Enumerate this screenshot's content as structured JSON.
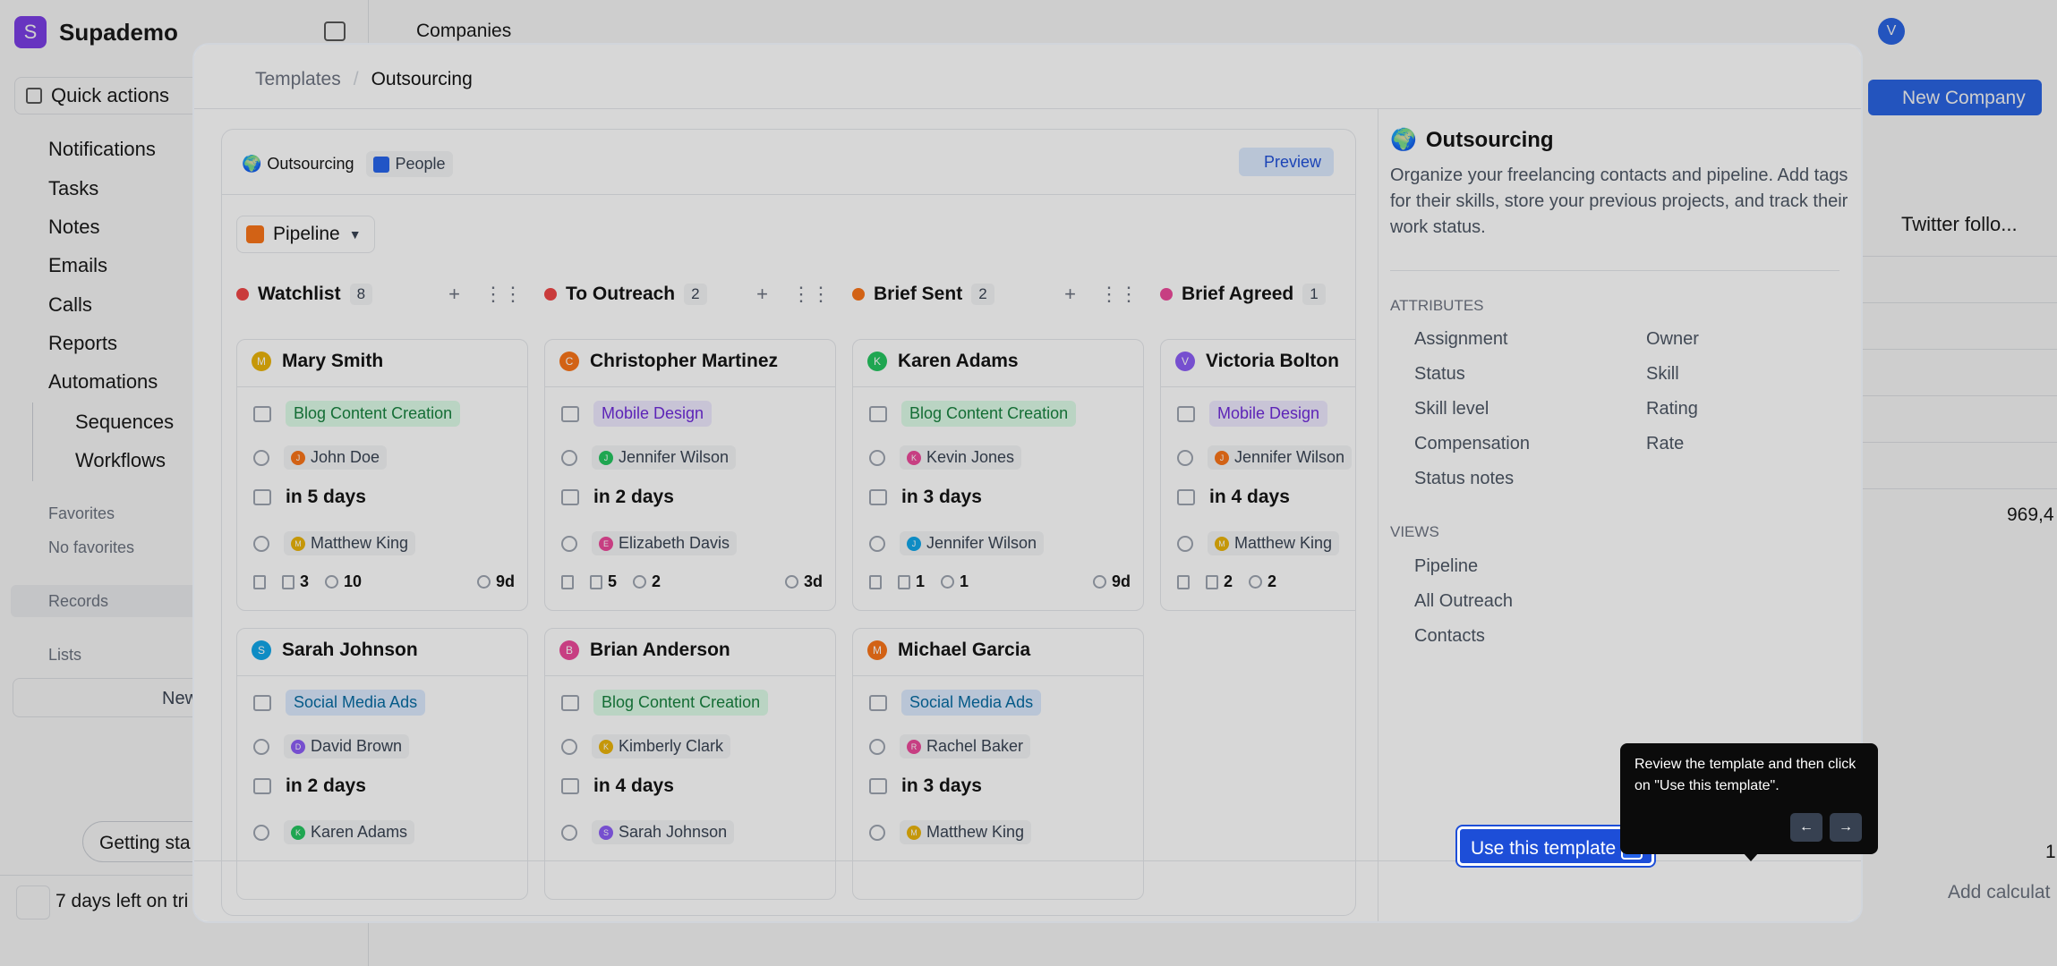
{
  "app": {
    "logo_letter": "S",
    "name": "Supademo"
  },
  "sidebar": {
    "quick_actions": "Quick actions",
    "items": [
      {
        "label": "Notifications"
      },
      {
        "label": "Tasks"
      },
      {
        "label": "Notes"
      },
      {
        "label": "Emails"
      },
      {
        "label": "Calls"
      },
      {
        "label": "Reports"
      },
      {
        "label": "Automations"
      }
    ],
    "sub_items": [
      {
        "label": "Sequences"
      },
      {
        "label": "Workflows"
      }
    ],
    "favorites_label": "Favorites",
    "no_favorites": "No favorites",
    "records_label": "Records",
    "lists_label": "Lists",
    "new_label": "New",
    "getting_started": "Getting sta",
    "trial": "7 days left on tri"
  },
  "main": {
    "title": "Companies",
    "avatar": "V",
    "new_company": "New Company",
    "twitter_col": "Twitter follo...",
    "value1": "969,4",
    "value2": "1",
    "add_calc": "Add calculat"
  },
  "modal": {
    "breadcrumb": [
      "Templates",
      "Outsourcing"
    ],
    "preview": {
      "object_label": "Outsourcing",
      "object_icon": "globe-icon",
      "object_emoji": "🌍",
      "people_label": "People",
      "preview_button": "Preview",
      "view_name": "Pipeline",
      "columns": [
        {
          "name": "Watchlist",
          "count": "8",
          "color": "#ef4444",
          "cards": [
            {
              "initial": "M",
              "avatar_color": "#eab308",
              "name": "Mary Smith",
              "tag": "Blog Content Creation",
              "tag_color": "green",
              "owner_initial": "J",
              "owner_color": "#f97316",
              "owner": "John Doe",
              "due": "in 5 days",
              "assignee_initial": "M",
              "assignee_color": "#eab308",
              "assignee": "Matthew King",
              "tasks": "3",
              "comments": "10",
              "age": "9d"
            },
            {
              "initial": "S",
              "avatar_color": "#0ea5e9",
              "name": "Sarah Johnson",
              "tag": "Social Media Ads",
              "tag_color": "blue",
              "owner_initial": "D",
              "owner_color": "#8b5cf6",
              "owner": "David Brown",
              "due": "in 2 days",
              "assignee_initial": "K",
              "assignee_color": "#22c55e",
              "assignee": "Karen Adams"
            }
          ]
        },
        {
          "name": "To Outreach",
          "count": "2",
          "color": "#ef4444",
          "cards": [
            {
              "initial": "C",
              "avatar_color": "#f97316",
              "name": "Christopher Martinez",
              "tag": "Mobile Design",
              "tag_color": "purple",
              "owner_initial": "J",
              "owner_color": "#22c55e",
              "owner": "Jennifer Wilson",
              "due": "in 2 days",
              "assignee_initial": "E",
              "assignee_color": "#ec4899",
              "assignee": "Elizabeth Davis",
              "tasks": "5",
              "comments": "2",
              "age": "3d"
            },
            {
              "initial": "B",
              "avatar_color": "#ec4899",
              "name": "Brian Anderson",
              "tag": "Blog Content Creation",
              "tag_color": "green",
              "owner_initial": "K",
              "owner_color": "#eab308",
              "owner": "Kimberly Clark",
              "due": "in 4 days",
              "assignee_initial": "S",
              "assignee_color": "#8b5cf6",
              "assignee": "Sarah Johnson"
            }
          ]
        },
        {
          "name": "Brief Sent",
          "count": "2",
          "color": "#f97316",
          "cards": [
            {
              "initial": "K",
              "avatar_color": "#22c55e",
              "name": "Karen Adams",
              "tag": "Blog Content Creation",
              "tag_color": "green",
              "owner_initial": "K",
              "owner_color": "#ec4899",
              "owner": "Kevin Jones",
              "due": "in 3 days",
              "assignee_initial": "J",
              "assignee_color": "#0ea5e9",
              "assignee": "Jennifer Wilson",
              "tasks": "1",
              "comments": "1",
              "age": "9d"
            },
            {
              "initial": "M",
              "avatar_color": "#f97316",
              "name": "Michael Garcia",
              "tag": "Social Media Ads",
              "tag_color": "blue",
              "owner_initial": "R",
              "owner_color": "#ec4899",
              "owner": "Rachel Baker",
              "due": "in 3 days",
              "assignee_initial": "M",
              "assignee_color": "#eab308",
              "assignee": "Matthew King"
            }
          ]
        },
        {
          "name": "Brief Agreed",
          "count": "1",
          "color": "#ec4899",
          "cards": [
            {
              "initial": "V",
              "avatar_color": "#8b5cf6",
              "name": "Victoria Bolton",
              "tag": "Mobile Design",
              "tag_color": "purple",
              "owner_initial": "J",
              "owner_color": "#f97316",
              "owner": "Jennifer Wilson",
              "due": "in 4 days",
              "assignee_initial": "M",
              "assignee_color": "#eab308",
              "assignee": "Matthew King",
              "tasks": "2",
              "comments": "2",
              "age": ""
            }
          ]
        }
      ]
    },
    "info": {
      "title": "Outsourcing",
      "description": "Organize your freelancing contacts and pipeline. Add tags for their skills, store your previous projects, and track their work status.",
      "attributes_label": "ATTRIBUTES",
      "attributes_left": [
        "Assignment",
        "Status",
        "Skill level",
        "Compensation",
        "Status notes"
      ],
      "attributes_right": [
        "Owner",
        "Skill",
        "Rating",
        "Rate"
      ],
      "views_label": "VIEWS",
      "views": [
        "Pipeline",
        "All Outreach",
        "Contacts"
      ]
    },
    "use_button": "Use this template"
  },
  "tooltip": {
    "text": "Review the template and then click on \"Use this template\".",
    "prev": "←",
    "next": "→"
  }
}
